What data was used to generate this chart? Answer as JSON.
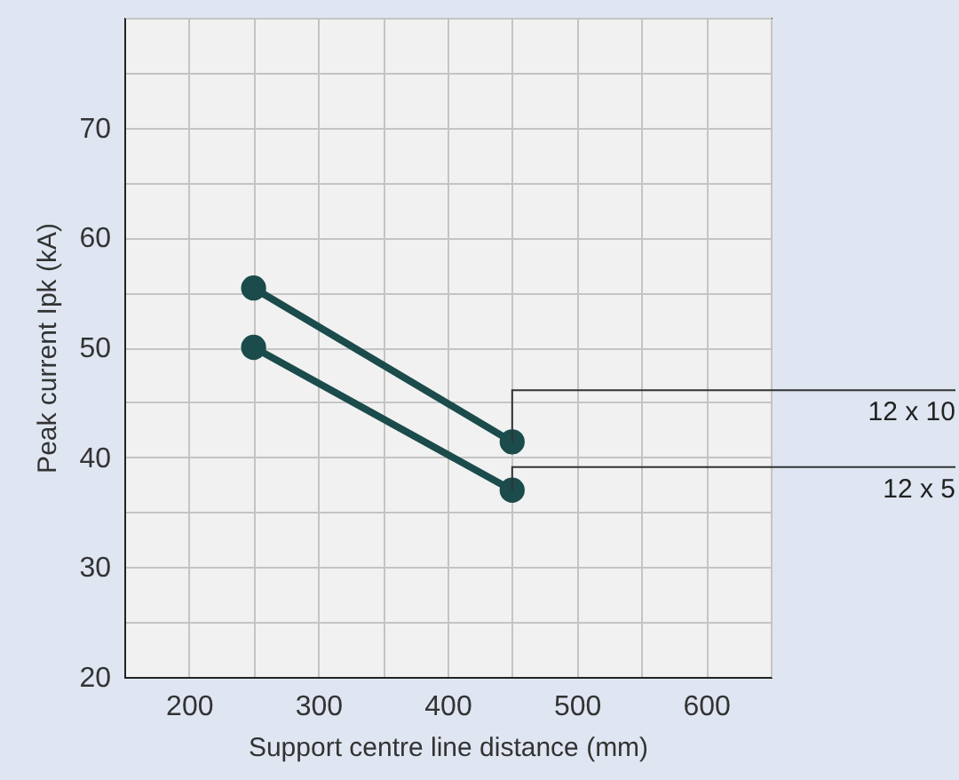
{
  "chart_data": {
    "type": "line",
    "xlabel": "Support centre line distance (mm)",
    "ylabel": "Peak current Ipk (kA)",
    "x": [
      250,
      450
    ],
    "series": [
      {
        "name": "12 x 10",
        "color": "#1b4b4b",
        "values": [
          55.4,
          41.4
        ]
      },
      {
        "name": "12 x 5",
        "color": "#1b4b4b",
        "values": [
          50,
          37
        ]
      }
    ],
    "xlim": [
      150,
      650
    ],
    "xticks": [
      {
        "value": 150,
        "label": null
      },
      200,
      {
        "value": 250,
        "label": null
      },
      300,
      {
        "value": 350,
        "label": null
      },
      400,
      {
        "value": 450,
        "label": null
      },
      500,
      {
        "value": 550,
        "label": null
      },
      600,
      {
        "value": 650,
        "label": null
      }
    ],
    "ylim": [
      20,
      80
    ],
    "yticks": [
      20,
      {
        "value": 25,
        "label": null
      },
      30,
      {
        "value": 35,
        "label": null
      },
      40,
      {
        "value": 45,
        "label": null
      },
      50,
      {
        "value": 55,
        "label": null
      },
      60,
      {
        "value": 65,
        "label": null
      },
      70,
      {
        "value": 75,
        "label": null
      },
      {
        "value": 80,
        "label": null
      }
    ],
    "grid": true,
    "marker": "circle",
    "line_style": "solid"
  }
}
